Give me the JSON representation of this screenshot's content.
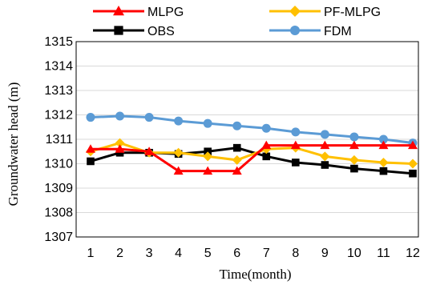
{
  "chart_data": {
    "type": "line",
    "xlabel": "Time(month)",
    "ylabel": "Groundwater head (m)",
    "x": [
      1,
      2,
      3,
      4,
      5,
      6,
      7,
      8,
      9,
      10,
      11,
      12
    ],
    "ylim": [
      1307,
      1315
    ],
    "yticks": [
      1307,
      1308,
      1309,
      1310,
      1311,
      1312,
      1313,
      1314,
      1315
    ],
    "grid": true,
    "legend_position": "top",
    "series": [
      {
        "name": "MLPG",
        "color": "#ff0000",
        "marker": "triangle",
        "values": [
          1310.6,
          1310.6,
          1310.5,
          1309.7,
          1309.7,
          1309.7,
          1310.75,
          1310.75,
          1310.75,
          1310.75,
          1310.75,
          1310.75
        ]
      },
      {
        "name": "PF-MLPG",
        "color": "#ffc000",
        "marker": "diamond",
        "values": [
          1310.5,
          1310.85,
          1310.45,
          1310.45,
          1310.3,
          1310.15,
          1310.6,
          1310.65,
          1310.3,
          1310.15,
          1310.05,
          1310.0
        ]
      },
      {
        "name": "OBS",
        "color": "#000000",
        "marker": "square",
        "values": [
          1310.1,
          1310.45,
          1310.45,
          1310.4,
          1310.5,
          1310.65,
          1310.3,
          1310.05,
          1309.95,
          1309.8,
          1309.7,
          1309.6
        ]
      },
      {
        "name": "FDM",
        "color": "#5b9bd5",
        "marker": "circle",
        "values": [
          1311.9,
          1311.95,
          1311.9,
          1311.75,
          1311.65,
          1311.55,
          1311.45,
          1311.3,
          1311.2,
          1311.1,
          1311.0,
          1310.85
        ]
      }
    ]
  }
}
